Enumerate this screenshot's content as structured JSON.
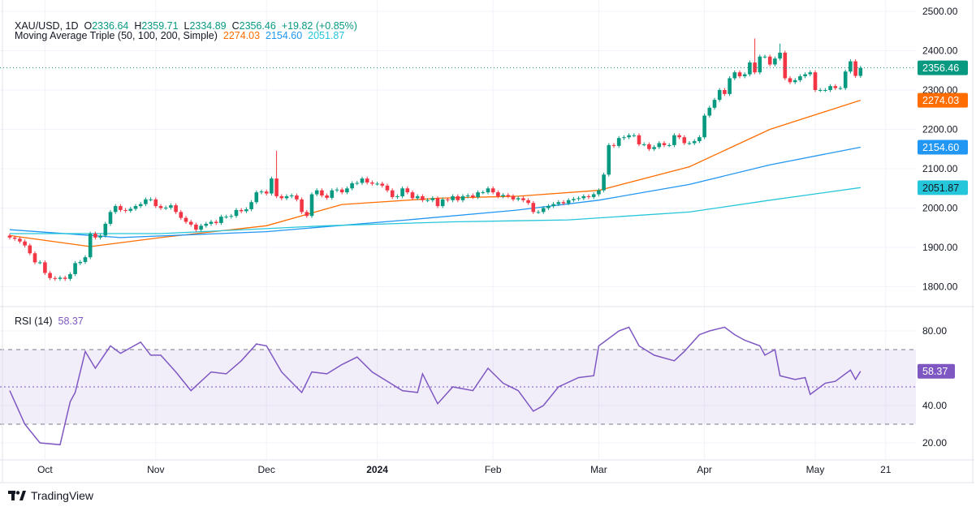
{
  "header": {
    "symbol": "XAU/USD, 1D",
    "open_label": "O",
    "open": "2336.64",
    "high_label": "H",
    "high": "2359.71",
    "low_label": "L",
    "low": "2334.89",
    "close_label": "C",
    "close": "2356.46",
    "change": "+19.82 (+0.85%)"
  },
  "ma_legend": {
    "label": "Moving Average Triple (50, 100, 200, Simple)",
    "ma50": "2274.03",
    "ma100": "2154.60",
    "ma200": "2051.87"
  },
  "rsi_legend": {
    "label": "RSI (14)",
    "value": "58.37"
  },
  "branding": {
    "logo_text": "TradingView"
  },
  "colors": {
    "up": "#089981",
    "down": "#f23645",
    "ma50": "#ff6d00",
    "ma100": "#2196f3",
    "ma200": "#26c6da",
    "rsi": "#7e57c2"
  },
  "chart_data": [
    {
      "type": "candlestick",
      "title": "XAU/USD, 1D",
      "price_axis_ticks": [
        "2500.00",
        "2400.00",
        "2300.00",
        "2200.00",
        "2100.00",
        "2000.00",
        "1900.00",
        "1800.00"
      ],
      "ylim": [
        1760,
        2510
      ],
      "time_axis_ticks": [
        {
          "label": "Oct",
          "index": 7
        },
        {
          "label": "Nov",
          "index": 29
        },
        {
          "label": "Dec",
          "index": 51
        },
        {
          "label": "2024",
          "index": 73
        },
        {
          "label": "Feb",
          "index": 96
        },
        {
          "label": "Mar",
          "index": 117
        },
        {
          "label": "Apr",
          "index": 138
        },
        {
          "label": "May",
          "index": 160
        },
        {
          "label": "21",
          "index": 174
        }
      ],
      "closes": [
        1925,
        1922,
        1915,
        1905,
        1885,
        1862,
        1862,
        1835,
        1822,
        1820,
        1823,
        1820,
        1832,
        1860,
        1863,
        1875,
        1935,
        1925,
        1930,
        1960,
        1990,
        2005,
        1995,
        1993,
        1998,
        2005,
        2010,
        2022,
        2022,
        2005,
        2000,
        2001,
        2007,
        1990,
        1975,
        1965,
        1958,
        1945,
        1955,
        1960,
        1965,
        1962,
        1978,
        1978,
        1980,
        1995,
        1992,
        1997,
        2015,
        2040,
        2042,
        2037,
        2075,
        2030,
        2025,
        2030,
        2032,
        2022,
        1990,
        1980,
        2035,
        2045,
        2032,
        2026,
        2045,
        2047,
        2040,
        2050,
        2063,
        2064,
        2075,
        2065,
        2062,
        2062,
        2057,
        2045,
        2028,
        2030,
        2050,
        2040,
        2025,
        2030,
        2020,
        2020,
        2025,
        2005,
        2022,
        2020,
        2030,
        2020,
        2030,
        2032,
        2028,
        2040,
        2040,
        2050,
        2040,
        2030,
        2033,
        2030,
        2022,
        2025,
        2020,
        2013,
        1990,
        1990,
        2000,
        2005,
        2010,
        2015,
        2012,
        2020,
        2023,
        2025,
        2030,
        2028,
        2035,
        2045,
        2085,
        2160,
        2158,
        2178,
        2180,
        2185,
        2185,
        2162,
        2162,
        2150,
        2155,
        2165,
        2160,
        2160,
        2185,
        2180,
        2165,
        2165,
        2170,
        2180,
        2235,
        2255,
        2275,
        2300,
        2290,
        2330,
        2345,
        2335,
        2340,
        2370,
        2345,
        2385,
        2385,
        2365,
        2380,
        2395,
        2330,
        2320,
        2325,
        2335,
        2340,
        2345,
        2300,
        2300,
        2300,
        2310,
        2305,
        2305,
        2347,
        2373,
        2336,
        2356.46
      ],
      "first_open": 1930,
      "high_spikes": {
        "53": 2146,
        "148": 2431,
        "153": 2418,
        "167": 2378
      },
      "last_price": "2356.46",
      "moving_averages": [
        {
          "name": "MA 50",
          "last": "2274.03",
          "points": [
            [
              0,
              1930
            ],
            [
              16,
              1902
            ],
            [
              30,
              1925
            ],
            [
              51,
              1955
            ],
            [
              66,
              2009
            ],
            [
              85,
              2025
            ],
            [
              101,
              2030
            ],
            [
              117,
              2045
            ],
            [
              135,
              2105
            ],
            [
              151,
              2200
            ],
            [
              169,
              2274.03
            ]
          ]
        },
        {
          "name": "MA 100",
          "last": "2154.60",
          "points": [
            [
              0,
              1945
            ],
            [
              22,
              1925
            ],
            [
              51,
              1940
            ],
            [
              79,
              1970
            ],
            [
              101,
              1995
            ],
            [
              117,
              2020
            ],
            [
              135,
              2060
            ],
            [
              151,
              2110
            ],
            [
              169,
              2154.6
            ]
          ]
        },
        {
          "name": "MA 200",
          "last": "2051.87",
          "points": [
            [
              0,
              1935
            ],
            [
              30,
              1935
            ],
            [
              63,
              1955
            ],
            [
              88,
              1965
            ],
            [
              111,
              1970
            ],
            [
              135,
              1990
            ],
            [
              151,
              2020
            ],
            [
              169,
              2051.87
            ]
          ]
        }
      ]
    },
    {
      "type": "line",
      "title": "RSI (14)",
      "axis_ticks": [
        "80.00",
        "40.00",
        "20.00"
      ],
      "bands": {
        "upper": 70,
        "middle": 50,
        "lower": 30
      },
      "last_value": "58.37",
      "points": [
        [
          0,
          48
        ],
        [
          3,
          30
        ],
        [
          6,
          20
        ],
        [
          10,
          19
        ],
        [
          12,
          42
        ],
        [
          13,
          47
        ],
        [
          15,
          69
        ],
        [
          17,
          60
        ],
        [
          20,
          72
        ],
        [
          22,
          68
        ],
        [
          26,
          74
        ],
        [
          28,
          67
        ],
        [
          30,
          67
        ],
        [
          33,
          58
        ],
        [
          36,
          48
        ],
        [
          40,
          58
        ],
        [
          43,
          57
        ],
        [
          46,
          64
        ],
        [
          49,
          73
        ],
        [
          51,
          72
        ],
        [
          54,
          58
        ],
        [
          58,
          47
        ],
        [
          60,
          58
        ],
        [
          63,
          57
        ],
        [
          66,
          62
        ],
        [
          69,
          66
        ],
        [
          72,
          58
        ],
        [
          75,
          53
        ],
        [
          78,
          48
        ],
        [
          81,
          47
        ],
        [
          82,
          57
        ],
        [
          85,
          41
        ],
        [
          88,
          50
        ],
        [
          92,
          48
        ],
        [
          95,
          60
        ],
        [
          98,
          52
        ],
        [
          101,
          48
        ],
        [
          104,
          37
        ],
        [
          106,
          40
        ],
        [
          109,
          50
        ],
        [
          113,
          55
        ],
        [
          116,
          56
        ],
        [
          117,
          72
        ],
        [
          121,
          80
        ],
        [
          123,
          82
        ],
        [
          125,
          72
        ],
        [
          128,
          67
        ],
        [
          132,
          64
        ],
        [
          134,
          69
        ],
        [
          137,
          78
        ],
        [
          139,
          80
        ],
        [
          142,
          82
        ],
        [
          144,
          78
        ],
        [
          146,
          75
        ],
        [
          149,
          72
        ],
        [
          150,
          67
        ],
        [
          152,
          70
        ],
        [
          153,
          56
        ],
        [
          156,
          54
        ],
        [
          158,
          55
        ],
        [
          159,
          46
        ],
        [
          162,
          52
        ],
        [
          164,
          53
        ],
        [
          167,
          59
        ],
        [
          168,
          54
        ],
        [
          169,
          58.37
        ]
      ]
    }
  ]
}
